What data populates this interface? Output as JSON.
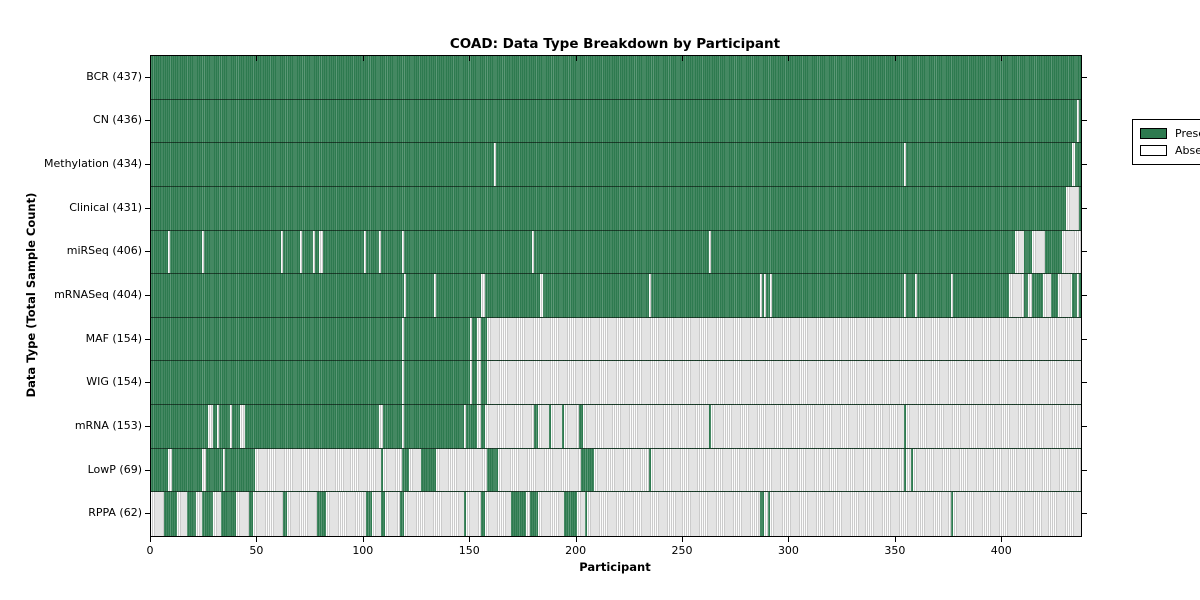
{
  "title": "COAD: Data Type Breakdown by Participant",
  "chart_data": {
    "type": "heatmap",
    "title": "COAD: Data Type Breakdown by Participant",
    "xlabel": "Participant",
    "ylabel": "Data Type (Total Sample Count)",
    "xlim": [
      0,
      437
    ],
    "x_ticks": [
      0,
      50,
      100,
      150,
      200,
      250,
      300,
      350,
      400
    ],
    "grid": false,
    "legend": {
      "position": "upper right",
      "entries": [
        {
          "label": "Present",
          "color": "#2d7a4f"
        },
        {
          "label": "Absent",
          "color": "#ffffff"
        }
      ]
    },
    "colors": {
      "present": "#2d7a4f",
      "absent_light": "#fbfbfb",
      "absent_dark": "#cbcbcb",
      "border": "#000000"
    },
    "rows": [
      {
        "label": "BCR (437)",
        "data_type": "BCR",
        "total": 437,
        "absent_ranges": []
      },
      {
        "label": "CN (436)",
        "data_type": "CN",
        "total": 436,
        "absent_ranges": [
          [
            435,
            436
          ]
        ]
      },
      {
        "label": "Methylation (434)",
        "data_type": "Methylation",
        "total": 434,
        "absent_ranges": [
          [
            161,
            162
          ],
          [
            354,
            355
          ],
          [
            433,
            434
          ]
        ]
      },
      {
        "label": "Clinical (431)",
        "data_type": "Clinical",
        "total": 431,
        "absent_ranges": [
          [
            430,
            436
          ]
        ]
      },
      {
        "label": "miRSeq (406)",
        "data_type": "miRSeq",
        "total": 406,
        "absent_ranges": [
          [
            8,
            9
          ],
          [
            24,
            25
          ],
          [
            61,
            62
          ],
          [
            70,
            71
          ],
          [
            76,
            77
          ],
          [
            79,
            81
          ],
          [
            100,
            101
          ],
          [
            107,
            108
          ],
          [
            118,
            119
          ],
          [
            179,
            180
          ],
          [
            262,
            263
          ],
          [
            406,
            410
          ],
          [
            414,
            420
          ],
          [
            428,
            437
          ]
        ]
      },
      {
        "label": "mRNASeq (404)",
        "data_type": "mRNASeq",
        "total": 404,
        "absent_ranges": [
          [
            119,
            120
          ],
          [
            133,
            134
          ],
          [
            155,
            157
          ],
          [
            183,
            184
          ],
          [
            234,
            235
          ],
          [
            286,
            287
          ],
          [
            288,
            289
          ],
          [
            291,
            292
          ],
          [
            354,
            355
          ],
          [
            359,
            360
          ],
          [
            376,
            377
          ],
          [
            403,
            410
          ],
          [
            412,
            414
          ],
          [
            419,
            423
          ],
          [
            426,
            433
          ],
          [
            435,
            436
          ]
        ]
      },
      {
        "label": "MAF (154)",
        "data_type": "MAF",
        "total": 154,
        "absent_ranges": [
          [
            118,
            119
          ],
          [
            150,
            151
          ],
          [
            153,
            155
          ],
          [
            158,
            437
          ]
        ]
      },
      {
        "label": "WIG (154)",
        "data_type": "WIG",
        "total": 154,
        "absent_ranges": [
          [
            118,
            119
          ],
          [
            150,
            151
          ],
          [
            153,
            155
          ],
          [
            158,
            437
          ]
        ]
      },
      {
        "label": "mRNA (153)",
        "data_type": "mRNA",
        "total": 153,
        "absent_ranges": [
          [
            27,
            29
          ],
          [
            31,
            32
          ],
          [
            37,
            38
          ],
          [
            42,
            44
          ],
          [
            107,
            109
          ],
          [
            118,
            119
          ],
          [
            147,
            148
          ],
          [
            153,
            155
          ],
          [
            157,
            180
          ],
          [
            182,
            187
          ],
          [
            188,
            193
          ],
          [
            194,
            201
          ],
          [
            203,
            262
          ],
          [
            263,
            354
          ],
          [
            355,
            437
          ]
        ]
      },
      {
        "label": "LowP (69)",
        "data_type": "LowP",
        "total": 69,
        "absent_ranges": [
          [
            8,
            10
          ],
          [
            24,
            26
          ],
          [
            34,
            35
          ],
          [
            49,
            108
          ],
          [
            109,
            118
          ],
          [
            121,
            127
          ],
          [
            134,
            158
          ],
          [
            163,
            202
          ],
          [
            208,
            234
          ],
          [
            235,
            354
          ],
          [
            355,
            357
          ],
          [
            358,
            437
          ]
        ]
      },
      {
        "label": "RPPA (62)",
        "data_type": "RPPA",
        "total": 62,
        "absent_ranges": [
          [
            0,
            6
          ],
          [
            12,
            17
          ],
          [
            21,
            24
          ],
          [
            29,
            33
          ],
          [
            40,
            46
          ],
          [
            48,
            62
          ],
          [
            64,
            78
          ],
          [
            82,
            101
          ],
          [
            104,
            108
          ],
          [
            110,
            117
          ],
          [
            119,
            147
          ],
          [
            148,
            155
          ],
          [
            157,
            169
          ],
          [
            176,
            178
          ],
          [
            182,
            194
          ],
          [
            200,
            204
          ],
          [
            205,
            286
          ],
          [
            288,
            290
          ],
          [
            291,
            376
          ],
          [
            377,
            437
          ]
        ]
      }
    ]
  }
}
